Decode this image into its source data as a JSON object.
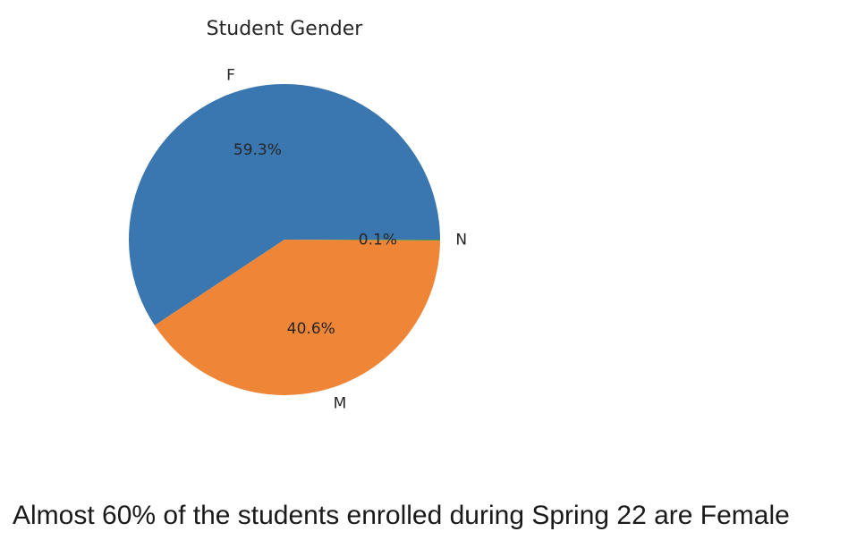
{
  "chart_data": {
    "type": "pie",
    "title": "Student Gender",
    "categories": [
      "F",
      "M",
      "N"
    ],
    "values": [
      59.3,
      40.6,
      0.1
    ],
    "value_labels": [
      "59.3%",
      "40.6%",
      "0.1%"
    ],
    "colors": [
      "#3a76af",
      "#ef8536",
      "#529d3e"
    ],
    "start_angle": 0,
    "direction": "counterclockwise",
    "legend": "none"
  },
  "caption": "Almost 60% of the students enrolled during Spring 22 are Female"
}
